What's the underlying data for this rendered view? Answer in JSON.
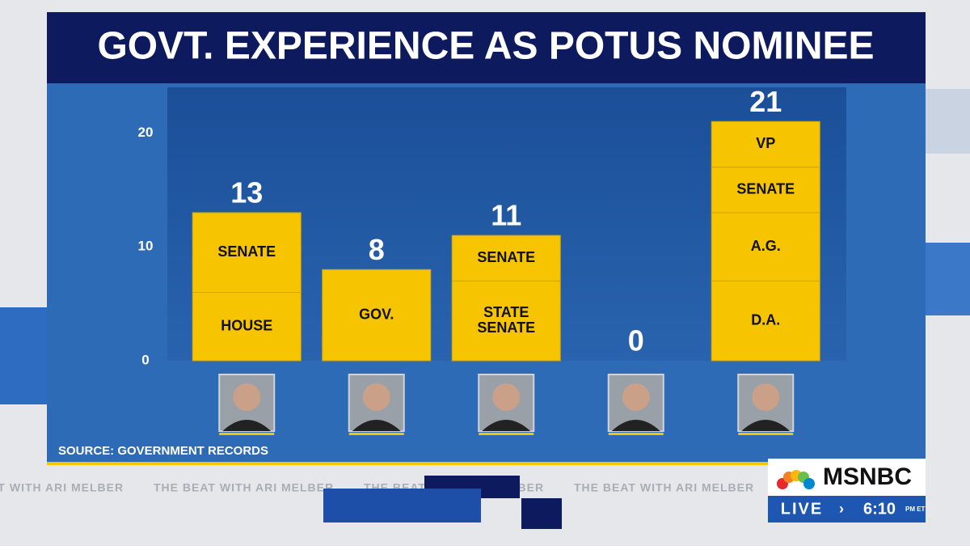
{
  "chart_data": {
    "type": "stacked-bar",
    "title": "GOVT. EXPERIENCE AS POTUS NOMINEE",
    "source": "SOURCE: GOVERNMENT RECORDS",
    "categories": [
      null,
      null,
      null,
      null,
      null
    ],
    "values": [
      13,
      8,
      11,
      0,
      21
    ],
    "segments": [
      [
        {
          "label": "HOUSE",
          "value": 6
        },
        {
          "label": "SENATE",
          "value": 7
        }
      ],
      [
        {
          "label": "GOV.",
          "value": 8
        }
      ],
      [
        {
          "label": "STATE SENATE",
          "value": 7
        },
        {
          "label": "SENATE",
          "value": 4
        }
      ],
      [],
      [
        {
          "label": "D.A.",
          "value": 7
        },
        {
          "label": "A.G.",
          "value": 6
        },
        {
          "label": "SENATE",
          "value": 4
        },
        {
          "label": "VP",
          "value": 4
        }
      ]
    ],
    "color": "#f6c400",
    "ylim": [
      0,
      24
    ],
    "yticks": [
      0,
      10,
      20
    ]
  },
  "broadcast": {
    "network": "MSNBC",
    "live": "LIVE",
    "time": "6:10",
    "time_suffix": "PM ET",
    "ticker": [
      "THE BEAT WITH ARI MELBER",
      "THE BEAT WITH ARI MELBER",
      "THE BEAT WITH ARI MELBER",
      "THE BEAT WITH ARI MELBER"
    ]
  }
}
